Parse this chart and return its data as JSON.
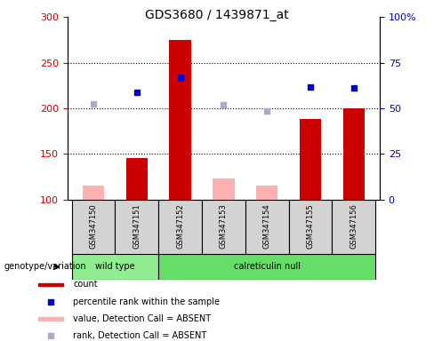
{
  "title": "GDS3680 / 1439871_at",
  "samples": [
    "GSM347150",
    "GSM347151",
    "GSM347152",
    "GSM347153",
    "GSM347154",
    "GSM347155",
    "GSM347156"
  ],
  "ylim_left": [
    100,
    300
  ],
  "ylim_right": [
    0,
    100
  ],
  "yticks_left": [
    100,
    150,
    200,
    250,
    300
  ],
  "yticks_right": [
    0,
    25,
    50,
    75,
    100
  ],
  "yticklabels_right": [
    "0",
    "25",
    "50",
    "75",
    "100%"
  ],
  "bars_red": {
    "GSM347150": null,
    "GSM347151": 145,
    "GSM347152": 275,
    "GSM347153": null,
    "GSM347154": null,
    "GSM347155": 188,
    "GSM347156": 200
  },
  "bars_pink": {
    "GSM347150": 115,
    "GSM347151": null,
    "GSM347152": null,
    "GSM347153": 123,
    "GSM347154": 115,
    "GSM347155": null,
    "GSM347156": null
  },
  "dots_blue": {
    "GSM347150": null,
    "GSM347151": 217,
    "GSM347152": 234,
    "GSM347153": null,
    "GSM347154": null,
    "GSM347155": 223,
    "GSM347156": 222
  },
  "dots_lightblue": {
    "GSM347150": 205,
    "GSM347151": null,
    "GSM347152": null,
    "GSM347153": 204,
    "GSM347154": 197,
    "GSM347155": null,
    "GSM347156": null
  },
  "bar_width": 0.5,
  "red_color": "#CC0000",
  "pink_color": "#FFB0B0",
  "blue_color": "#0000CC",
  "lightblue_color": "#AAAACC",
  "group_label": "genotype/variation",
  "wt_color": "#90EE90",
  "cn_color": "#66DD66",
  "legend_items": [
    {
      "label": "count",
      "type": "bar",
      "color": "#CC0000"
    },
    {
      "label": "percentile rank within the sample",
      "type": "dot",
      "color": "#0000CC"
    },
    {
      "label": "value, Detection Call = ABSENT",
      "type": "bar",
      "color": "#FFB0B0"
    },
    {
      "label": "rank, Detection Call = ABSENT",
      "type": "dot",
      "color": "#AAAACC"
    }
  ]
}
